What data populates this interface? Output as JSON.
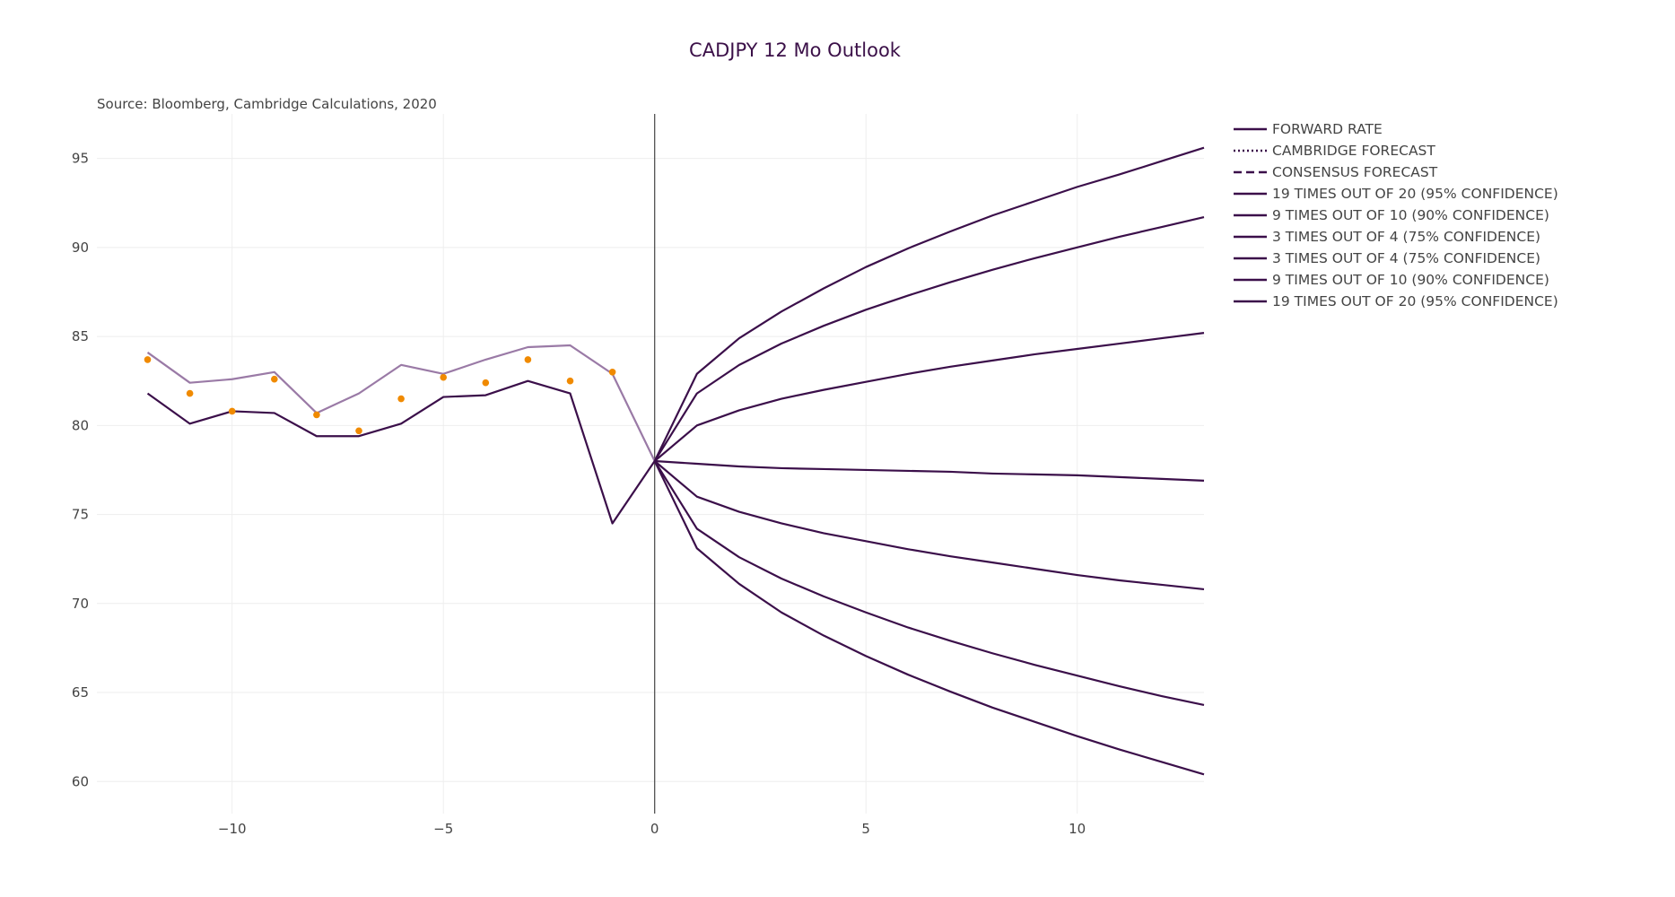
{
  "chart_data": {
    "type": "line",
    "title": "CADJPY 12 Mo Outlook",
    "annotation": "Source: Bloomberg, Cambridge Calculations, 2020",
    "xlabel": "",
    "ylabel": "",
    "xlim": [
      -13.2,
      13
    ],
    "ylim": [
      58.2,
      97.5
    ],
    "x_ticks": [
      -10,
      -5,
      0,
      5,
      10
    ],
    "x_tick_labels": [
      "−10",
      "−5",
      "0",
      "5",
      "10"
    ],
    "y_ticks": [
      60,
      65,
      70,
      75,
      80,
      85,
      90,
      95
    ],
    "y_tick_labels": [
      "60",
      "65",
      "70",
      "75",
      "80",
      "85",
      "90",
      "95"
    ],
    "grid": true,
    "zero_line_x": 0,
    "legend_position": "top-right",
    "colors": {
      "dark": "#3b0f4a",
      "light": "#9a7aa6",
      "points": "#f08a00",
      "grid": "#eeeeee",
      "axis": "#444444"
    },
    "history_light": {
      "x": [
        -12,
        -11,
        -10,
        -9,
        -8,
        -7,
        -6,
        -5,
        -4,
        -3,
        -2,
        -1,
        0
      ],
      "y": [
        84.1,
        82.4,
        82.6,
        83.0,
        80.7,
        81.8,
        83.4,
        82.9,
        83.7,
        84.4,
        84.5,
        82.9,
        78.0
      ]
    },
    "history_dark": {
      "x": [
        -12,
        -11,
        -10,
        -9,
        -8,
        -7,
        -6,
        -5,
        -4,
        -3,
        -2,
        -1,
        0
      ],
      "y": [
        81.8,
        80.1,
        80.8,
        80.7,
        79.4,
        79.4,
        80.1,
        81.6,
        81.7,
        82.5,
        81.8,
        74.5,
        78.0
      ]
    },
    "history_points": {
      "x": [
        -12,
        -11,
        -10,
        -9,
        -8,
        -7,
        -6,
        -5,
        -4,
        -3,
        -2,
        -1
      ],
      "y": [
        83.7,
        81.8,
        80.8,
        82.6,
        80.6,
        79.7,
        81.5,
        82.7,
        82.4,
        83.7,
        82.5,
        83.0
      ]
    },
    "forecast_x": [
      0,
      1,
      2,
      3,
      4,
      5,
      6,
      7,
      8,
      9,
      10,
      11,
      12,
      13
    ],
    "series": [
      {
        "name": "FORWARD RATE",
        "dash": "solid",
        "values": [
          78.0,
          77.85,
          77.7,
          77.6,
          77.55,
          77.5,
          77.45,
          77.4,
          77.3,
          77.25,
          77.2,
          77.1,
          77.0,
          76.9
        ]
      },
      {
        "name": "CAMBRIDGE FORECAST",
        "dash": "dot",
        "values": []
      },
      {
        "name": "CONSENSUS FORECAST",
        "dash": "dash",
        "values": []
      },
      {
        "name": "19 TIMES OUT OF 20 (95% CONFIDENCE)",
        "dash": "solid",
        "values": [
          78.0,
          82.9,
          84.9,
          86.4,
          87.7,
          88.9,
          89.95,
          90.9,
          91.8,
          92.6,
          93.4,
          94.1,
          94.85,
          95.6
        ]
      },
      {
        "name": "9 TIMES OUT OF 10 (90% CONFIDENCE)",
        "dash": "solid",
        "values": [
          78.0,
          81.8,
          83.4,
          84.6,
          85.6,
          86.5,
          87.3,
          88.05,
          88.75,
          89.4,
          90.0,
          90.6,
          91.15,
          91.7
        ]
      },
      {
        "name": "3 TIMES OUT OF 4 (75% CONFIDENCE)",
        "dash": "solid",
        "values": [
          78.0,
          80.0,
          80.85,
          81.5,
          82.0,
          82.45,
          82.9,
          83.3,
          83.65,
          84.0,
          84.3,
          84.6,
          84.9,
          85.2
        ]
      },
      {
        "name": "3 TIMES OUT OF 4 (75% CONFIDENCE)",
        "dash": "solid",
        "values": [
          78.0,
          76.0,
          75.15,
          74.5,
          73.95,
          73.5,
          73.05,
          72.65,
          72.3,
          71.95,
          71.6,
          71.3,
          71.05,
          70.8
        ]
      },
      {
        "name": "9 TIMES OUT OF 10 (90% CONFIDENCE)",
        "dash": "solid",
        "values": [
          78.0,
          74.2,
          72.6,
          71.4,
          70.4,
          69.5,
          68.65,
          67.9,
          67.2,
          66.55,
          65.95,
          65.35,
          64.8,
          64.3
        ]
      },
      {
        "name": "19 TIMES OUT OF 20 (95% CONFIDENCE)",
        "dash": "solid",
        "values": [
          78.0,
          73.1,
          71.1,
          69.5,
          68.2,
          67.05,
          66.0,
          65.05,
          64.15,
          63.35,
          62.55,
          61.8,
          61.1,
          60.4
        ]
      }
    ]
  }
}
